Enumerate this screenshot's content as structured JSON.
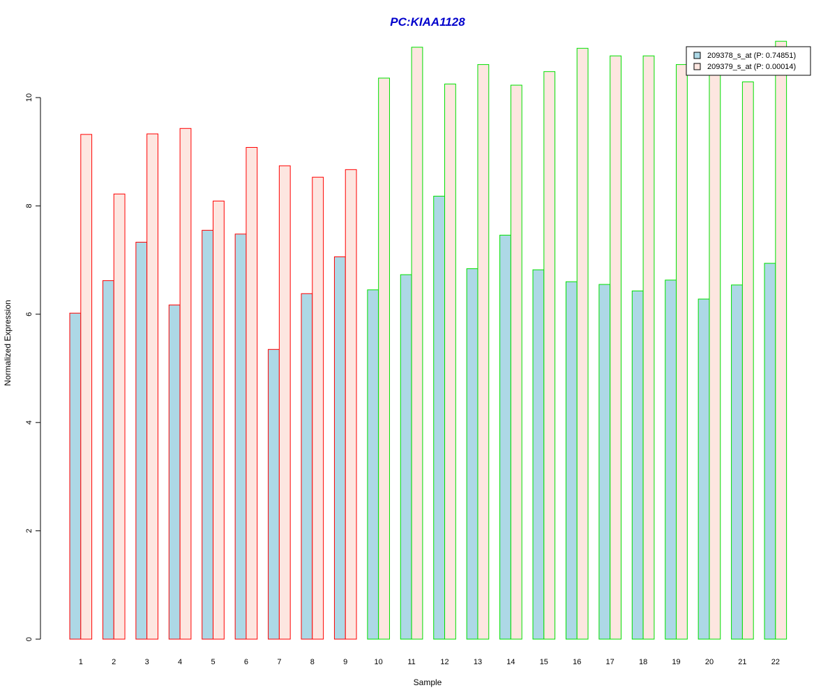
{
  "chart_data": {
    "type": "bar",
    "title": "PC:KIAA1128",
    "xlabel": "Sample",
    "ylabel": "Normalized Expression",
    "ylim": [
      0,
      11
    ],
    "yticks": [
      0,
      2,
      4,
      6,
      8,
      10
    ],
    "grid": false,
    "legend_position": "top-right",
    "categories": [
      "1",
      "2",
      "3",
      "4",
      "5",
      "6",
      "7",
      "8",
      "9",
      "10",
      "11",
      "12",
      "13",
      "14",
      "15",
      "16",
      "17",
      "18",
      "19",
      "20",
      "21",
      "22"
    ],
    "group_border_colors": [
      "#ff0000",
      "#ff0000",
      "#ff0000",
      "#ff0000",
      "#ff0000",
      "#ff0000",
      "#ff0000",
      "#ff0000",
      "#ff0000",
      "#00e000",
      "#00e000",
      "#00e000",
      "#00e000",
      "#00e000",
      "#00e000",
      "#00e000",
      "#00e000",
      "#00e000",
      "#00e000",
      "#00e000",
      "#00e000",
      "#00e000"
    ],
    "series": [
      {
        "name": "209378_s_at (P: 0.74851)",
        "fill": "#add8e6",
        "values": [
          6.02,
          6.62,
          7.33,
          6.17,
          7.55,
          7.48,
          5.35,
          6.38,
          7.06,
          6.45,
          6.73,
          8.18,
          6.84,
          7.46,
          6.82,
          6.6,
          6.55,
          6.43,
          6.63,
          6.28,
          6.54,
          6.94
        ]
      },
      {
        "name": "209379_s_at (P: 0.00014)",
        "fill": "#fde6e0",
        "values": [
          9.32,
          8.22,
          9.33,
          9.43,
          8.09,
          9.08,
          8.74,
          8.53,
          8.67,
          10.36,
          10.93,
          10.25,
          10.61,
          10.23,
          10.48,
          10.91,
          10.77,
          10.77,
          10.61,
          10.48,
          10.29,
          11.04
        ]
      }
    ]
  }
}
